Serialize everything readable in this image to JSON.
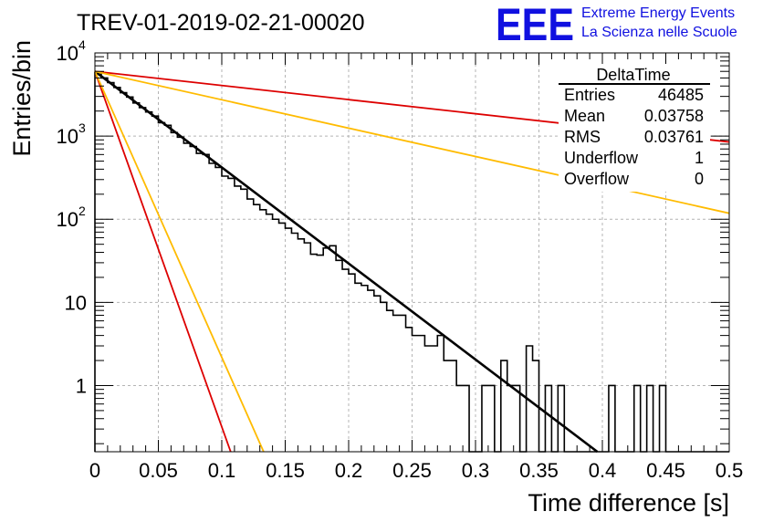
{
  "title": "TREV-01-2019-02-21-00020",
  "logo": {
    "letters": "EEE",
    "line1": "Extreme Energy Events",
    "line2": "La Scienza nelle Scuole",
    "color": "#1010e0"
  },
  "stats": {
    "header": "DeltaTime",
    "rows": [
      {
        "label": "Entries",
        "value": "46485"
      },
      {
        "label": "Mean",
        "value": "0.03758"
      },
      {
        "label": "RMS",
        "value": "0.03761"
      },
      {
        "label": "Underflow",
        "value": "1"
      },
      {
        "label": "Overflow",
        "value": "0"
      }
    ]
  },
  "chart_data": {
    "type": "histogram",
    "title": "TREV-01-2019-02-21-00020",
    "xlabel": "Time difference [s]",
    "ylabel": "Entries/bin",
    "xlim": [
      0,
      0.5
    ],
    "ylim": [
      0.16,
      10000
    ],
    "yscale": "log",
    "grid": true,
    "bin_width": 0.005,
    "x_ticks": [
      "0",
      "0.05",
      "0.1",
      "0.15",
      "0.2",
      "0.25",
      "0.3",
      "0.35",
      "0.4",
      "0.45",
      "0.5"
    ],
    "y_ticks": [
      {
        "value": 1,
        "label": "1"
      },
      {
        "value": 10,
        "label": "10"
      },
      {
        "value": 100,
        "label": "10",
        "exp": "2"
      },
      {
        "value": 1000,
        "label": "10",
        "exp": "3"
      },
      {
        "value": 10000,
        "label": "10",
        "exp": "4"
      }
    ],
    "counts": [
      5800,
      5000,
      4400,
      3850,
      3330,
      2950,
      2500,
      2200,
      1950,
      1740,
      1450,
      1350,
      1100,
      970,
      820,
      750,
      620,
      600,
      470,
      420,
      330,
      310,
      250,
      230,
      175,
      150,
      130,
      115,
      100,
      90,
      78,
      68,
      58,
      52,
      38,
      37,
      45,
      48,
      32,
      25,
      22,
      17,
      16,
      14,
      12,
      10,
      8,
      7,
      7,
      5,
      4,
      4,
      3,
      3,
      4,
      2,
      2,
      1,
      1,
      0,
      0,
      1,
      1,
      0,
      2,
      1,
      1,
      0,
      3,
      2,
      0,
      1,
      0,
      1,
      0,
      0,
      0,
      0,
      0,
      0,
      0,
      1,
      0,
      0,
      0,
      1,
      0,
      1,
      0,
      1,
      0,
      0,
      0,
      0,
      0,
      0,
      0,
      0,
      0,
      0
    ],
    "fits": [
      {
        "color": "#000000",
        "x": [
          0,
          0.396
        ],
        "y": [
          6000,
          0.16
        ]
      },
      {
        "color": "#dd0000",
        "x": [
          0,
          0.5
        ],
        "y": [
          6000,
          850
        ]
      },
      {
        "color": "#ffbb00",
        "x": [
          0,
          0.5
        ],
        "y": [
          6000,
          118
        ]
      },
      {
        "color": "#dd0000",
        "x": [
          0,
          0.107
        ],
        "y": [
          6000,
          0.16
        ]
      },
      {
        "color": "#ffbb00",
        "x": [
          0,
          0.133
        ],
        "y": [
          6000,
          0.16
        ]
      }
    ]
  }
}
